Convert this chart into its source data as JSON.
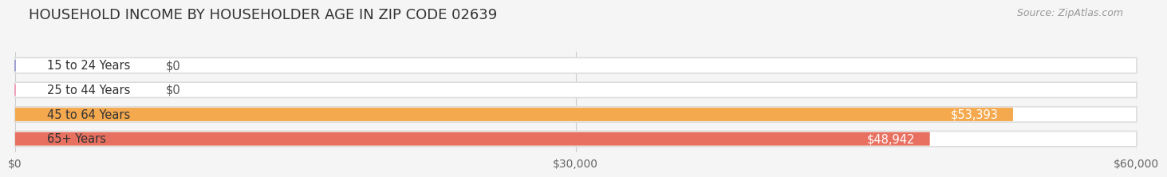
{
  "title": "HOUSEHOLD INCOME BY HOUSEHOLDER AGE IN ZIP CODE 02639",
  "source": "Source: ZipAtlas.com",
  "categories": [
    "15 to 24 Years",
    "25 to 44 Years",
    "45 to 64 Years",
    "65+ Years"
  ],
  "values": [
    0,
    0,
    53393,
    48942
  ],
  "bar_colors": [
    "#a0a0d0",
    "#f0a0b8",
    "#f5a94e",
    "#e87060"
  ],
  "value_labels": [
    "$0",
    "$0",
    "$53,393",
    "$48,942"
  ],
  "label_inside_color": [
    "#333333",
    "#333333",
    "#ffffff",
    "#ffffff"
  ],
  "xlim": [
    0,
    60000
  ],
  "xticks": [
    0,
    30000,
    60000
  ],
  "xticklabels": [
    "$0",
    "$30,000",
    "$60,000"
  ],
  "background_color": "#f5f5f5",
  "bar_bg_color": "#e8e8e8",
  "title_fontsize": 13,
  "source_fontsize": 9,
  "label_fontsize": 10.5,
  "tick_fontsize": 10
}
